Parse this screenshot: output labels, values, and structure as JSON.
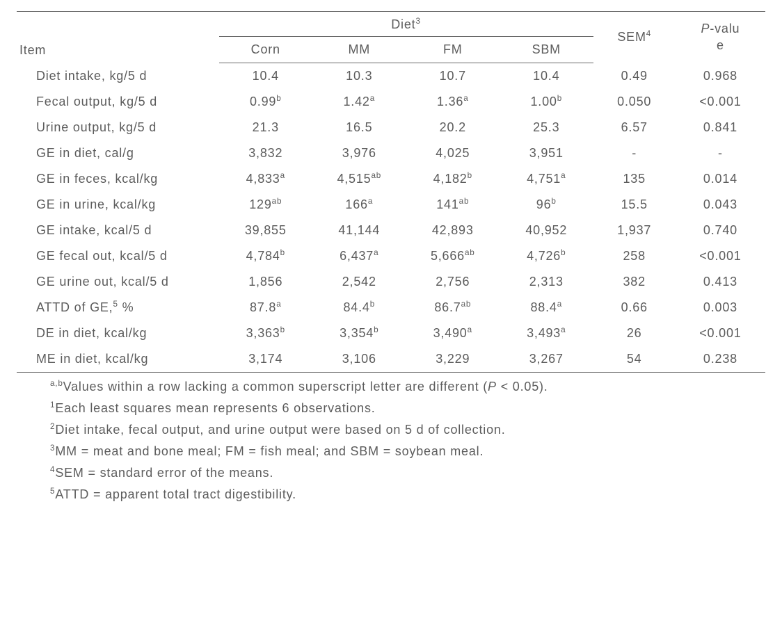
{
  "header": {
    "item": "Item",
    "diet_spanner": "Diet",
    "diet_sup": "3",
    "corn": "Corn",
    "mm": "MM",
    "fm": "FM",
    "sbm": "SBM",
    "sem": "SEM",
    "sem_sup": "4",
    "pvalue_top": "P",
    "pvalue_rest": "-valu",
    "pvalue_line2": "e"
  },
  "rows": [
    {
      "item": "Diet intake, kg/5 d",
      "corn": "10.4",
      "corn_sup": "",
      "mm": "10.3",
      "mm_sup": "",
      "fm": "10.7",
      "fm_sup": "",
      "sbm": "10.4",
      "sbm_sup": "",
      "sem": "0.49",
      "p": "0.968"
    },
    {
      "item": "Fecal output, kg/5 d",
      "corn": "0.99",
      "corn_sup": "b",
      "mm": "1.42",
      "mm_sup": "a",
      "fm": "1.36",
      "fm_sup": "a",
      "sbm": "1.00",
      "sbm_sup": "b",
      "sem": "0.050",
      "p": "<0.001"
    },
    {
      "item": "Urine output, kg/5 d",
      "corn": "21.3",
      "corn_sup": "",
      "mm": "16.5",
      "mm_sup": "",
      "fm": "20.2",
      "fm_sup": "",
      "sbm": "25.3",
      "sbm_sup": "",
      "sem": "6.57",
      "p": "0.841"
    },
    {
      "item": "GE in diet, cal/g",
      "corn": "3,832",
      "corn_sup": "",
      "mm": "3,976",
      "mm_sup": "",
      "fm": "4,025",
      "fm_sup": "",
      "sbm": "3,951",
      "sbm_sup": "",
      "sem": "-",
      "p": "-"
    },
    {
      "item": "GE in feces, kcal/kg",
      "corn": "4,833",
      "corn_sup": "a",
      "mm": "4,515",
      "mm_sup": "ab",
      "fm": "4,182",
      "fm_sup": "b",
      "sbm": "4,751",
      "sbm_sup": "a",
      "sem": "135",
      "p": "0.014"
    },
    {
      "item": "GE in urine, kcal/kg",
      "corn": "129",
      "corn_sup": "ab",
      "mm": "166",
      "mm_sup": "a",
      "fm": "141",
      "fm_sup": "ab",
      "sbm": "96",
      "sbm_sup": "b",
      "sem": "15.5",
      "p": "0.043"
    },
    {
      "item": "GE intake, kcal/5 d",
      "corn": "39,855",
      "corn_sup": "",
      "mm": "41,144",
      "mm_sup": "",
      "fm": "42,893",
      "fm_sup": "",
      "sbm": "40,952",
      "sbm_sup": "",
      "sem": "1,937",
      "p": "0.740"
    },
    {
      "item": "GE fecal out, kcal/5 d",
      "corn": "4,784",
      "corn_sup": "b",
      "mm": "6,437",
      "mm_sup": "a",
      "fm": "5,666",
      "fm_sup": "ab",
      "sbm": "4,726",
      "sbm_sup": "b",
      "sem": "258",
      "p": "<0.001"
    },
    {
      "item": "GE urine out, kcal/5 d",
      "corn": "1,856",
      "corn_sup": "",
      "mm": "2,542",
      "mm_sup": "",
      "fm": "2,756",
      "fm_sup": "",
      "sbm": "2,313",
      "sbm_sup": "",
      "sem": "382",
      "p": "0.413"
    },
    {
      "item_pre": "ATTD of GE,",
      "item_sup": "5",
      "item_post": " %",
      "corn": "87.8",
      "corn_sup": "a",
      "mm": "84.4",
      "mm_sup": "b",
      "fm": "86.7",
      "fm_sup": "ab",
      "sbm": "88.4",
      "sbm_sup": "a",
      "sem": "0.66",
      "p": "0.003"
    },
    {
      "item": "DE in diet, kcal/kg",
      "corn": "3,363",
      "corn_sup": "b",
      "mm": "3,354",
      "mm_sup": "b",
      "fm": "3,490",
      "fm_sup": "a",
      "sbm": "3,493",
      "sbm_sup": "a",
      "sem": "26",
      "p": "<0.001"
    },
    {
      "item": "ME in diet, kcal/kg",
      "corn": "3,174",
      "corn_sup": "",
      "mm": "3,106",
      "mm_sup": "",
      "fm": "3,229",
      "fm_sup": "",
      "sbm": "3,267",
      "sbm_sup": "",
      "sem": "54",
      "p": "0.238"
    }
  ],
  "footnotes": {
    "ab_sup": "a,b",
    "ab_pre": "Values within a row lacking a common superscript letter are different (",
    "ab_P": "P",
    "ab_post": " < 0.05).",
    "n1_sup": "1",
    "n1": "Each least squares mean represents 6 observations.",
    "n2_sup": "2",
    "n2": "Diet intake, fecal output, and urine output were based on 5 d of collection.",
    "n3_sup": "3",
    "n3": "MM = meat and bone meal; FM = fish meal; and SBM = soybean meal.",
    "n4_sup": "4",
    "n4": "SEM = standard error of the means.",
    "n5_sup": "5",
    "n5": "ATTD = apparent total tract digestibility."
  },
  "layout": {
    "col_widths_pct": [
      27,
      12.5,
      12.5,
      12.5,
      12.5,
      11,
      12
    ]
  },
  "colors": {
    "text": "#5c5c5c",
    "rule": "#6a6a6a",
    "background": "#ffffff"
  }
}
